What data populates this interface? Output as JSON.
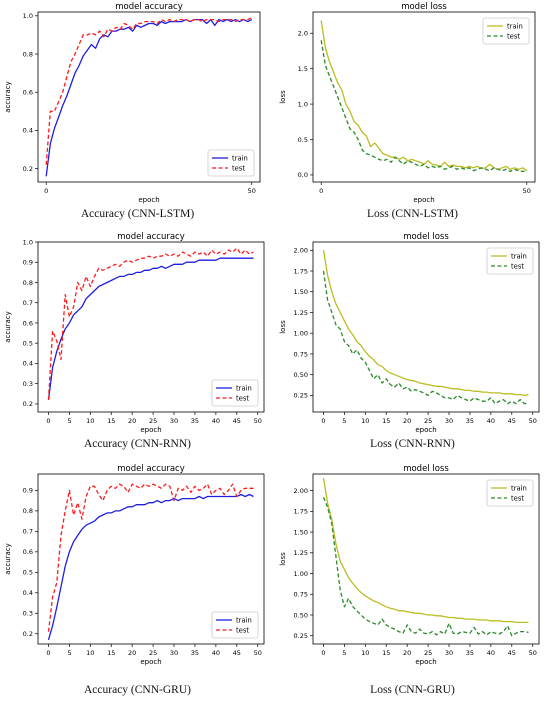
{
  "colors": {
    "train_acc": "#1f1fe0",
    "test_acc": "#ff1a1a",
    "train_loss": "#bcbd22",
    "test_loss": "#2a8a2a"
  },
  "captions": [
    "Accuracy (CNN-LSTM)",
    "Loss (CNN-LSTM)",
    "Accuracy (CNN-RNN)",
    "Loss (CNN-RNN)",
    "Accuracy (CNN-GRU)",
    "Loss (CNN-GRU)"
  ],
  "chart_data": [
    {
      "type": "line",
      "title": "model accuracy",
      "xlabel": "epoch",
      "ylabel": "accuracy",
      "xlim": [
        -2,
        52
      ],
      "ylim": [
        0.13,
        1.02
      ],
      "xticks": [
        0,
        50
      ],
      "xticklabels": [
        "0",
        "50"
      ],
      "yticks": [
        0.2,
        0.4,
        0.6,
        0.8,
        1.0
      ],
      "yticklabels": [
        "0.2",
        "0.4",
        "0.6",
        "0.8",
        "1.0"
      ],
      "legend": "lower-right",
      "series": [
        {
          "name": "train",
          "style": "solid",
          "colorKey": "train_acc",
          "values": [
            0.16,
            0.33,
            0.41,
            0.47,
            0.53,
            0.58,
            0.64,
            0.7,
            0.74,
            0.79,
            0.82,
            0.85,
            0.83,
            0.88,
            0.9,
            0.89,
            0.92,
            0.92,
            0.93,
            0.93,
            0.94,
            0.92,
            0.95,
            0.94,
            0.95,
            0.96,
            0.96,
            0.95,
            0.97,
            0.96,
            0.97,
            0.97,
            0.97,
            0.97,
            0.98,
            0.97,
            0.98,
            0.98,
            0.98,
            0.96,
            0.98,
            0.95,
            0.98,
            0.97,
            0.98,
            0.97,
            0.98,
            0.97,
            0.98,
            0.97,
            0.98
          ]
        },
        {
          "name": "test",
          "style": "dashed",
          "colorKey": "test_acc",
          "values": [
            0.22,
            0.5,
            0.5,
            0.55,
            0.6,
            0.68,
            0.76,
            0.8,
            0.85,
            0.9,
            0.9,
            0.91,
            0.9,
            0.92,
            0.89,
            0.93,
            0.92,
            0.94,
            0.93,
            0.96,
            0.95,
            0.93,
            0.96,
            0.96,
            0.97,
            0.97,
            0.97,
            0.96,
            0.98,
            0.97,
            0.98,
            0.97,
            0.98,
            0.98,
            0.98,
            0.97,
            0.98,
            0.98,
            0.97,
            0.98,
            0.98,
            0.98,
            0.97,
            0.98,
            0.98,
            0.98,
            0.97,
            0.98,
            0.98,
            0.98,
            0.99
          ]
        }
      ]
    },
    {
      "type": "line",
      "title": "model loss",
      "xlabel": "epoch",
      "ylabel": "loss",
      "xlim": [
        -2,
        52
      ],
      "ylim": [
        -0.1,
        2.3
      ],
      "xticks": [
        0,
        50
      ],
      "xticklabels": [
        "0",
        "50"
      ],
      "yticks": [
        0.0,
        0.5,
        1.0,
        1.5,
        2.0
      ],
      "yticklabels": [
        "0.0",
        "0.5",
        "1.0",
        "1.5",
        "2.0"
      ],
      "legend": "top-right",
      "series": [
        {
          "name": "train",
          "style": "solid",
          "colorKey": "train_loss",
          "values": [
            2.18,
            1.8,
            1.6,
            1.45,
            1.3,
            1.2,
            1.0,
            0.9,
            0.75,
            0.7,
            0.6,
            0.55,
            0.4,
            0.45,
            0.38,
            0.3,
            0.28,
            0.25,
            0.25,
            0.22,
            0.25,
            0.2,
            0.22,
            0.2,
            0.18,
            0.15,
            0.2,
            0.15,
            0.14,
            0.12,
            0.18,
            0.12,
            0.14,
            0.12,
            0.12,
            0.1,
            0.12,
            0.1,
            0.12,
            0.09,
            0.1,
            0.15,
            0.1,
            0.08,
            0.1,
            0.12,
            0.08,
            0.1,
            0.08,
            0.1,
            0.06
          ]
        },
        {
          "name": "test",
          "style": "dashed",
          "colorKey": "test_loss",
          "values": [
            1.9,
            1.55,
            1.4,
            1.25,
            1.1,
            0.95,
            0.8,
            0.65,
            0.6,
            0.5,
            0.35,
            0.3,
            0.28,
            0.25,
            0.22,
            0.2,
            0.22,
            0.18,
            0.25,
            0.2,
            0.15,
            0.2,
            0.18,
            0.15,
            0.12,
            0.15,
            0.1,
            0.12,
            0.1,
            0.12,
            0.08,
            0.1,
            0.12,
            0.08,
            0.1,
            0.08,
            0.1,
            0.06,
            0.08,
            0.1,
            0.08,
            0.06,
            0.1,
            0.08,
            0.06,
            0.08,
            0.05,
            0.08,
            0.06,
            0.05,
            0.05
          ]
        }
      ]
    },
    {
      "type": "line",
      "title": "model accuracy",
      "xlabel": "epoch",
      "ylabel": "accuracy",
      "xlim": [
        -2.5,
        51.5
      ],
      "ylim": [
        0.16,
        1.0
      ],
      "xticks": [
        0,
        5,
        10,
        15,
        20,
        25,
        30,
        35,
        40,
        45,
        50
      ],
      "xticklabels": [
        "0",
        "5",
        "10",
        "15",
        "20",
        "25",
        "30",
        "35",
        "40",
        "45",
        "50"
      ],
      "yticks": [
        0.2,
        0.3,
        0.4,
        0.5,
        0.6,
        0.7,
        0.8,
        0.9,
        1.0
      ],
      "yticklabels": [
        "0.2",
        "0.3",
        "0.4",
        "0.5",
        "0.6",
        "0.7",
        "0.8",
        "0.9",
        "1.0"
      ],
      "legend": "lower-right",
      "series": [
        {
          "name": "train",
          "style": "solid",
          "colorKey": "train_acc",
          "values": [
            0.22,
            0.38,
            0.46,
            0.52,
            0.57,
            0.6,
            0.64,
            0.66,
            0.68,
            0.72,
            0.74,
            0.76,
            0.78,
            0.79,
            0.8,
            0.81,
            0.82,
            0.83,
            0.83,
            0.84,
            0.84,
            0.85,
            0.85,
            0.86,
            0.86,
            0.87,
            0.87,
            0.88,
            0.87,
            0.88,
            0.89,
            0.89,
            0.89,
            0.9,
            0.9,
            0.9,
            0.91,
            0.91,
            0.91,
            0.91,
            0.91,
            0.92,
            0.92,
            0.92,
            0.92,
            0.92,
            0.92,
            0.92,
            0.92,
            0.92
          ]
        },
        {
          "name": "test",
          "style": "dashed",
          "colorKey": "test_acc",
          "values": [
            0.22,
            0.56,
            0.51,
            0.42,
            0.74,
            0.63,
            0.68,
            0.8,
            0.76,
            0.83,
            0.78,
            0.83,
            0.87,
            0.86,
            0.87,
            0.88,
            0.89,
            0.88,
            0.9,
            0.91,
            0.9,
            0.91,
            0.92,
            0.92,
            0.93,
            0.92,
            0.93,
            0.93,
            0.94,
            0.93,
            0.94,
            0.93,
            0.95,
            0.94,
            0.93,
            0.95,
            0.94,
            0.95,
            0.93,
            0.96,
            0.94,
            0.95,
            0.94,
            0.96,
            0.95,
            0.97,
            0.94,
            0.96,
            0.94,
            0.95
          ]
        }
      ]
    },
    {
      "type": "line",
      "title": "model loss",
      "xlabel": "epoch",
      "ylabel": "loss",
      "xlim": [
        -2.5,
        51.5
      ],
      "ylim": [
        0.05,
        2.1
      ],
      "xticks": [
        0,
        5,
        10,
        15,
        20,
        25,
        30,
        35,
        40,
        45,
        50
      ],
      "xticklabels": [
        "0",
        "5",
        "10",
        "15",
        "20",
        "25",
        "30",
        "35",
        "40",
        "45",
        "50"
      ],
      "yticks": [
        0.25,
        0.5,
        0.75,
        1.0,
        1.25,
        1.5,
        1.75,
        2.0
      ],
      "yticklabels": [
        "0.25",
        "0.50",
        "0.75",
        "1.00",
        "1.25",
        "1.50",
        "1.75",
        "2.00"
      ],
      "legend": "top-right",
      "series": [
        {
          "name": "train",
          "style": "solid",
          "colorKey": "train_loss",
          "values": [
            2.0,
            1.7,
            1.5,
            1.35,
            1.25,
            1.15,
            1.05,
            0.98,
            0.9,
            0.85,
            0.78,
            0.72,
            0.68,
            0.62,
            0.6,
            0.55,
            0.52,
            0.5,
            0.48,
            0.46,
            0.44,
            0.43,
            0.42,
            0.4,
            0.39,
            0.38,
            0.37,
            0.36,
            0.36,
            0.35,
            0.34,
            0.33,
            0.33,
            0.32,
            0.31,
            0.31,
            0.3,
            0.3,
            0.29,
            0.29,
            0.28,
            0.28,
            0.28,
            0.27,
            0.27,
            0.27,
            0.26,
            0.26,
            0.25,
            0.26
          ]
        },
        {
          "name": "test",
          "style": "dashed",
          "colorKey": "test_loss",
          "values": [
            1.75,
            1.4,
            1.25,
            1.1,
            1.05,
            0.9,
            0.85,
            0.75,
            0.8,
            0.7,
            0.65,
            0.55,
            0.45,
            0.5,
            0.4,
            0.45,
            0.38,
            0.35,
            0.4,
            0.33,
            0.35,
            0.3,
            0.32,
            0.3,
            0.28,
            0.25,
            0.3,
            0.28,
            0.25,
            0.22,
            0.22,
            0.2,
            0.25,
            0.22,
            0.2,
            0.18,
            0.22,
            0.2,
            0.18,
            0.18,
            0.22,
            0.15,
            0.18,
            0.2,
            0.15,
            0.18,
            0.15,
            0.2,
            0.15,
            0.16
          ]
        }
      ]
    },
    {
      "type": "line",
      "title": "model accuracy",
      "xlabel": "epoch",
      "ylabel": "accuracy",
      "xlim": [
        -2.5,
        51.5
      ],
      "ylim": [
        0.15,
        0.98
      ],
      "xticks": [
        0,
        5,
        10,
        15,
        20,
        25,
        30,
        35,
        40,
        45,
        50
      ],
      "xticklabels": [
        "0",
        "5",
        "10",
        "15",
        "20",
        "25",
        "30",
        "35",
        "40",
        "45",
        "50"
      ],
      "yticks": [
        0.2,
        0.3,
        0.4,
        0.5,
        0.6,
        0.7,
        0.8,
        0.9
      ],
      "yticklabels": [
        "0.2",
        "0.3",
        "0.4",
        "0.5",
        "0.6",
        "0.7",
        "0.8",
        "0.9"
      ],
      "legend": "lower-right",
      "series": [
        {
          "name": "train",
          "style": "solid",
          "colorKey": "train_acc",
          "values": [
            0.17,
            0.24,
            0.33,
            0.43,
            0.53,
            0.6,
            0.65,
            0.68,
            0.71,
            0.73,
            0.74,
            0.75,
            0.77,
            0.78,
            0.79,
            0.79,
            0.8,
            0.8,
            0.81,
            0.82,
            0.82,
            0.83,
            0.83,
            0.83,
            0.84,
            0.84,
            0.85,
            0.84,
            0.85,
            0.85,
            0.86,
            0.85,
            0.86,
            0.86,
            0.86,
            0.86,
            0.87,
            0.86,
            0.87,
            0.87,
            0.87,
            0.87,
            0.87,
            0.87,
            0.87,
            0.87,
            0.88,
            0.87,
            0.88,
            0.87
          ]
        },
        {
          "name": "test",
          "style": "dashed",
          "colorKey": "test_acc",
          "values": [
            0.21,
            0.38,
            0.45,
            0.68,
            0.8,
            0.9,
            0.78,
            0.84,
            0.76,
            0.87,
            0.92,
            0.92,
            0.88,
            0.85,
            0.9,
            0.92,
            0.91,
            0.93,
            0.92,
            0.89,
            0.93,
            0.92,
            0.91,
            0.93,
            0.92,
            0.93,
            0.92,
            0.91,
            0.93,
            0.92,
            0.85,
            0.91,
            0.9,
            0.92,
            0.89,
            0.92,
            0.9,
            0.91,
            0.93,
            0.88,
            0.9,
            0.91,
            0.88,
            0.9,
            0.93,
            0.87,
            0.9,
            0.91,
            0.91,
            0.91
          ]
        }
      ]
    },
    {
      "type": "line",
      "title": "model loss",
      "xlabel": "epoch",
      "ylabel": "loss",
      "xlim": [
        -2.5,
        51.5
      ],
      "ylim": [
        0.15,
        2.2
      ],
      "xticks": [
        0,
        5,
        10,
        15,
        20,
        25,
        30,
        35,
        40,
        45,
        50
      ],
      "xticklabels": [
        "0",
        "5",
        "10",
        "15",
        "20",
        "25",
        "30",
        "35",
        "40",
        "45",
        "50"
      ],
      "yticks": [
        0.25,
        0.5,
        0.75,
        1.0,
        1.25,
        1.5,
        1.75,
        2.0
      ],
      "yticklabels": [
        "0.25",
        "0.50",
        "0.75",
        "1.00",
        "1.25",
        "1.50",
        "1.75",
        "2.00"
      ],
      "legend": "top-right",
      "series": [
        {
          "name": "train",
          "style": "solid",
          "colorKey": "train_loss",
          "values": [
            2.15,
            1.85,
            1.65,
            1.35,
            1.15,
            1.05,
            0.95,
            0.88,
            0.82,
            0.77,
            0.73,
            0.7,
            0.67,
            0.65,
            0.62,
            0.6,
            0.58,
            0.57,
            0.55,
            0.55,
            0.54,
            0.53,
            0.52,
            0.52,
            0.51,
            0.5,
            0.5,
            0.49,
            0.49,
            0.48,
            0.47,
            0.47,
            0.46,
            0.46,
            0.45,
            0.45,
            0.45,
            0.44,
            0.44,
            0.44,
            0.43,
            0.43,
            0.43,
            0.42,
            0.42,
            0.42,
            0.41,
            0.41,
            0.41,
            0.41
          ]
        },
        {
          "name": "test",
          "style": "dashed",
          "colorKey": "test_loss",
          "values": [
            1.92,
            1.8,
            1.6,
            1.2,
            0.8,
            0.6,
            0.7,
            0.6,
            0.55,
            0.5,
            0.45,
            0.42,
            0.4,
            0.38,
            0.45,
            0.38,
            0.35,
            0.33,
            0.3,
            0.28,
            0.38,
            0.3,
            0.28,
            0.33,
            0.28,
            0.27,
            0.3,
            0.26,
            0.3,
            0.27,
            0.4,
            0.28,
            0.27,
            0.3,
            0.29,
            0.28,
            0.35,
            0.27,
            0.3,
            0.26,
            0.3,
            0.28,
            0.27,
            0.3,
            0.37,
            0.25,
            0.28,
            0.3,
            0.3,
            0.29
          ]
        }
      ]
    }
  ]
}
